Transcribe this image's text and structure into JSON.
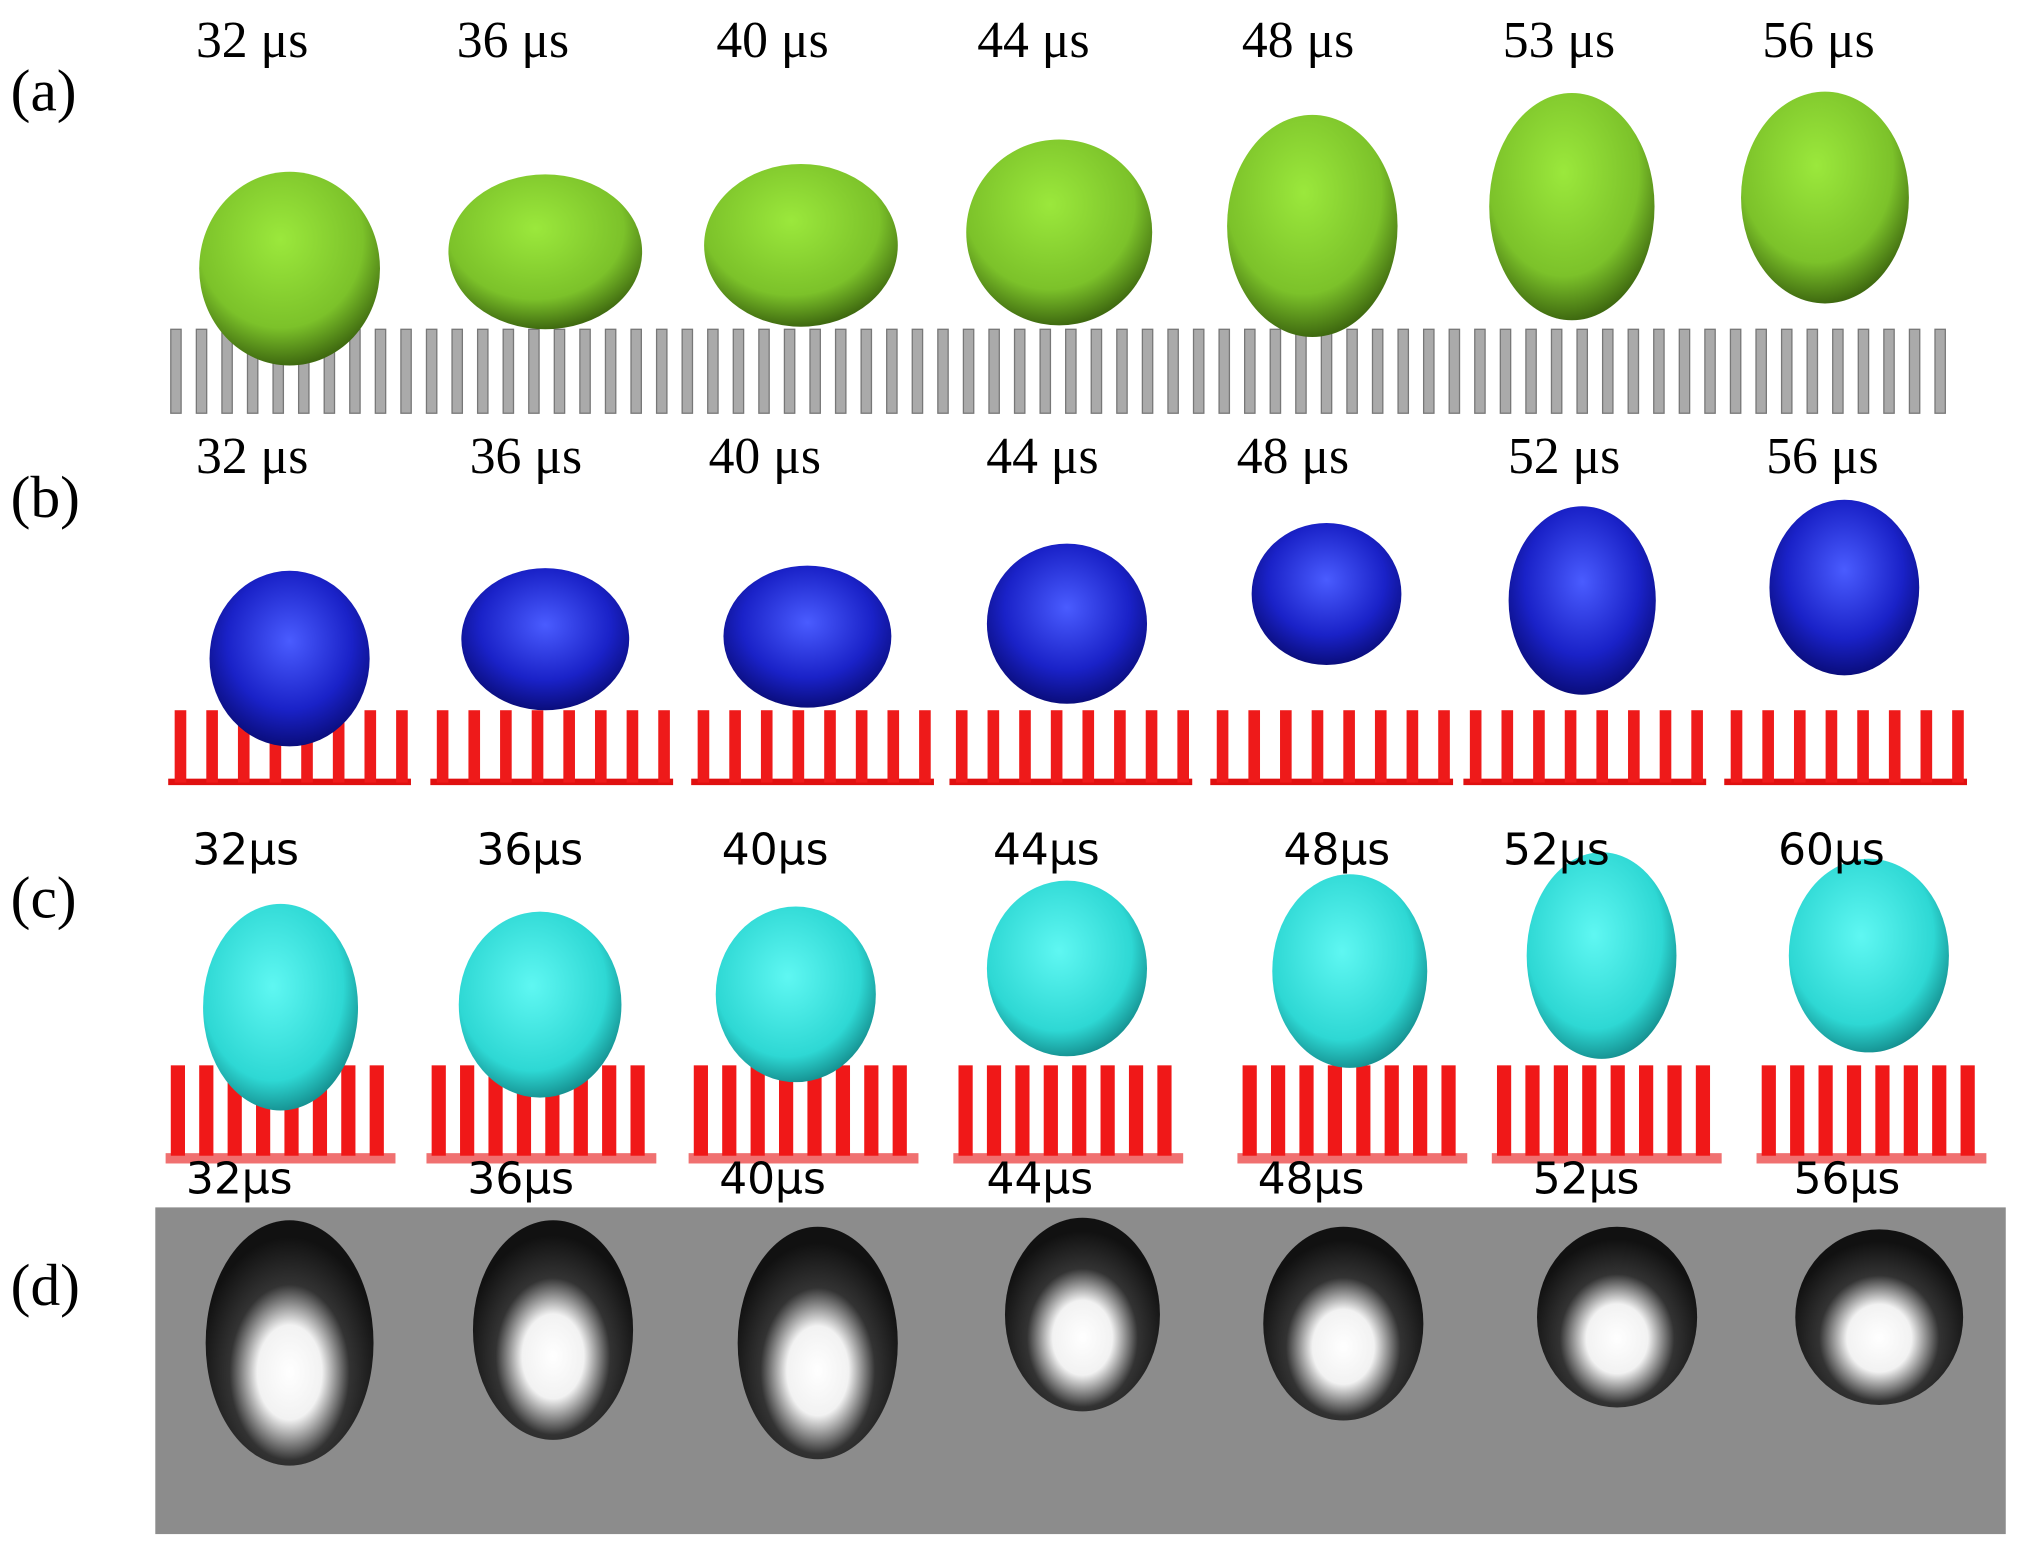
{
  "panels": [
    {
      "label": "(a)",
      "times": [
        "32 μs",
        "36 μs",
        "40 μs",
        "44 μs",
        "48 μs",
        "53 μs",
        "56 μs"
      ]
    },
    {
      "label": "(b)",
      "times": [
        "32 μs",
        "36 μs",
        "40 μs",
        "44 μs",
        "48 μs",
        "52 μs",
        "56 μs"
      ]
    },
    {
      "label": "(c)",
      "times": [
        "32μs",
        "36μs",
        "40μs",
        "44μs",
        "48μs",
        "52μs",
        "60μs"
      ]
    },
    {
      "label": "(d)",
      "times": [
        "32μs",
        "36μs",
        "40μs",
        "44μs",
        "48μs",
        "52μs",
        "56μs"
      ]
    }
  ]
}
